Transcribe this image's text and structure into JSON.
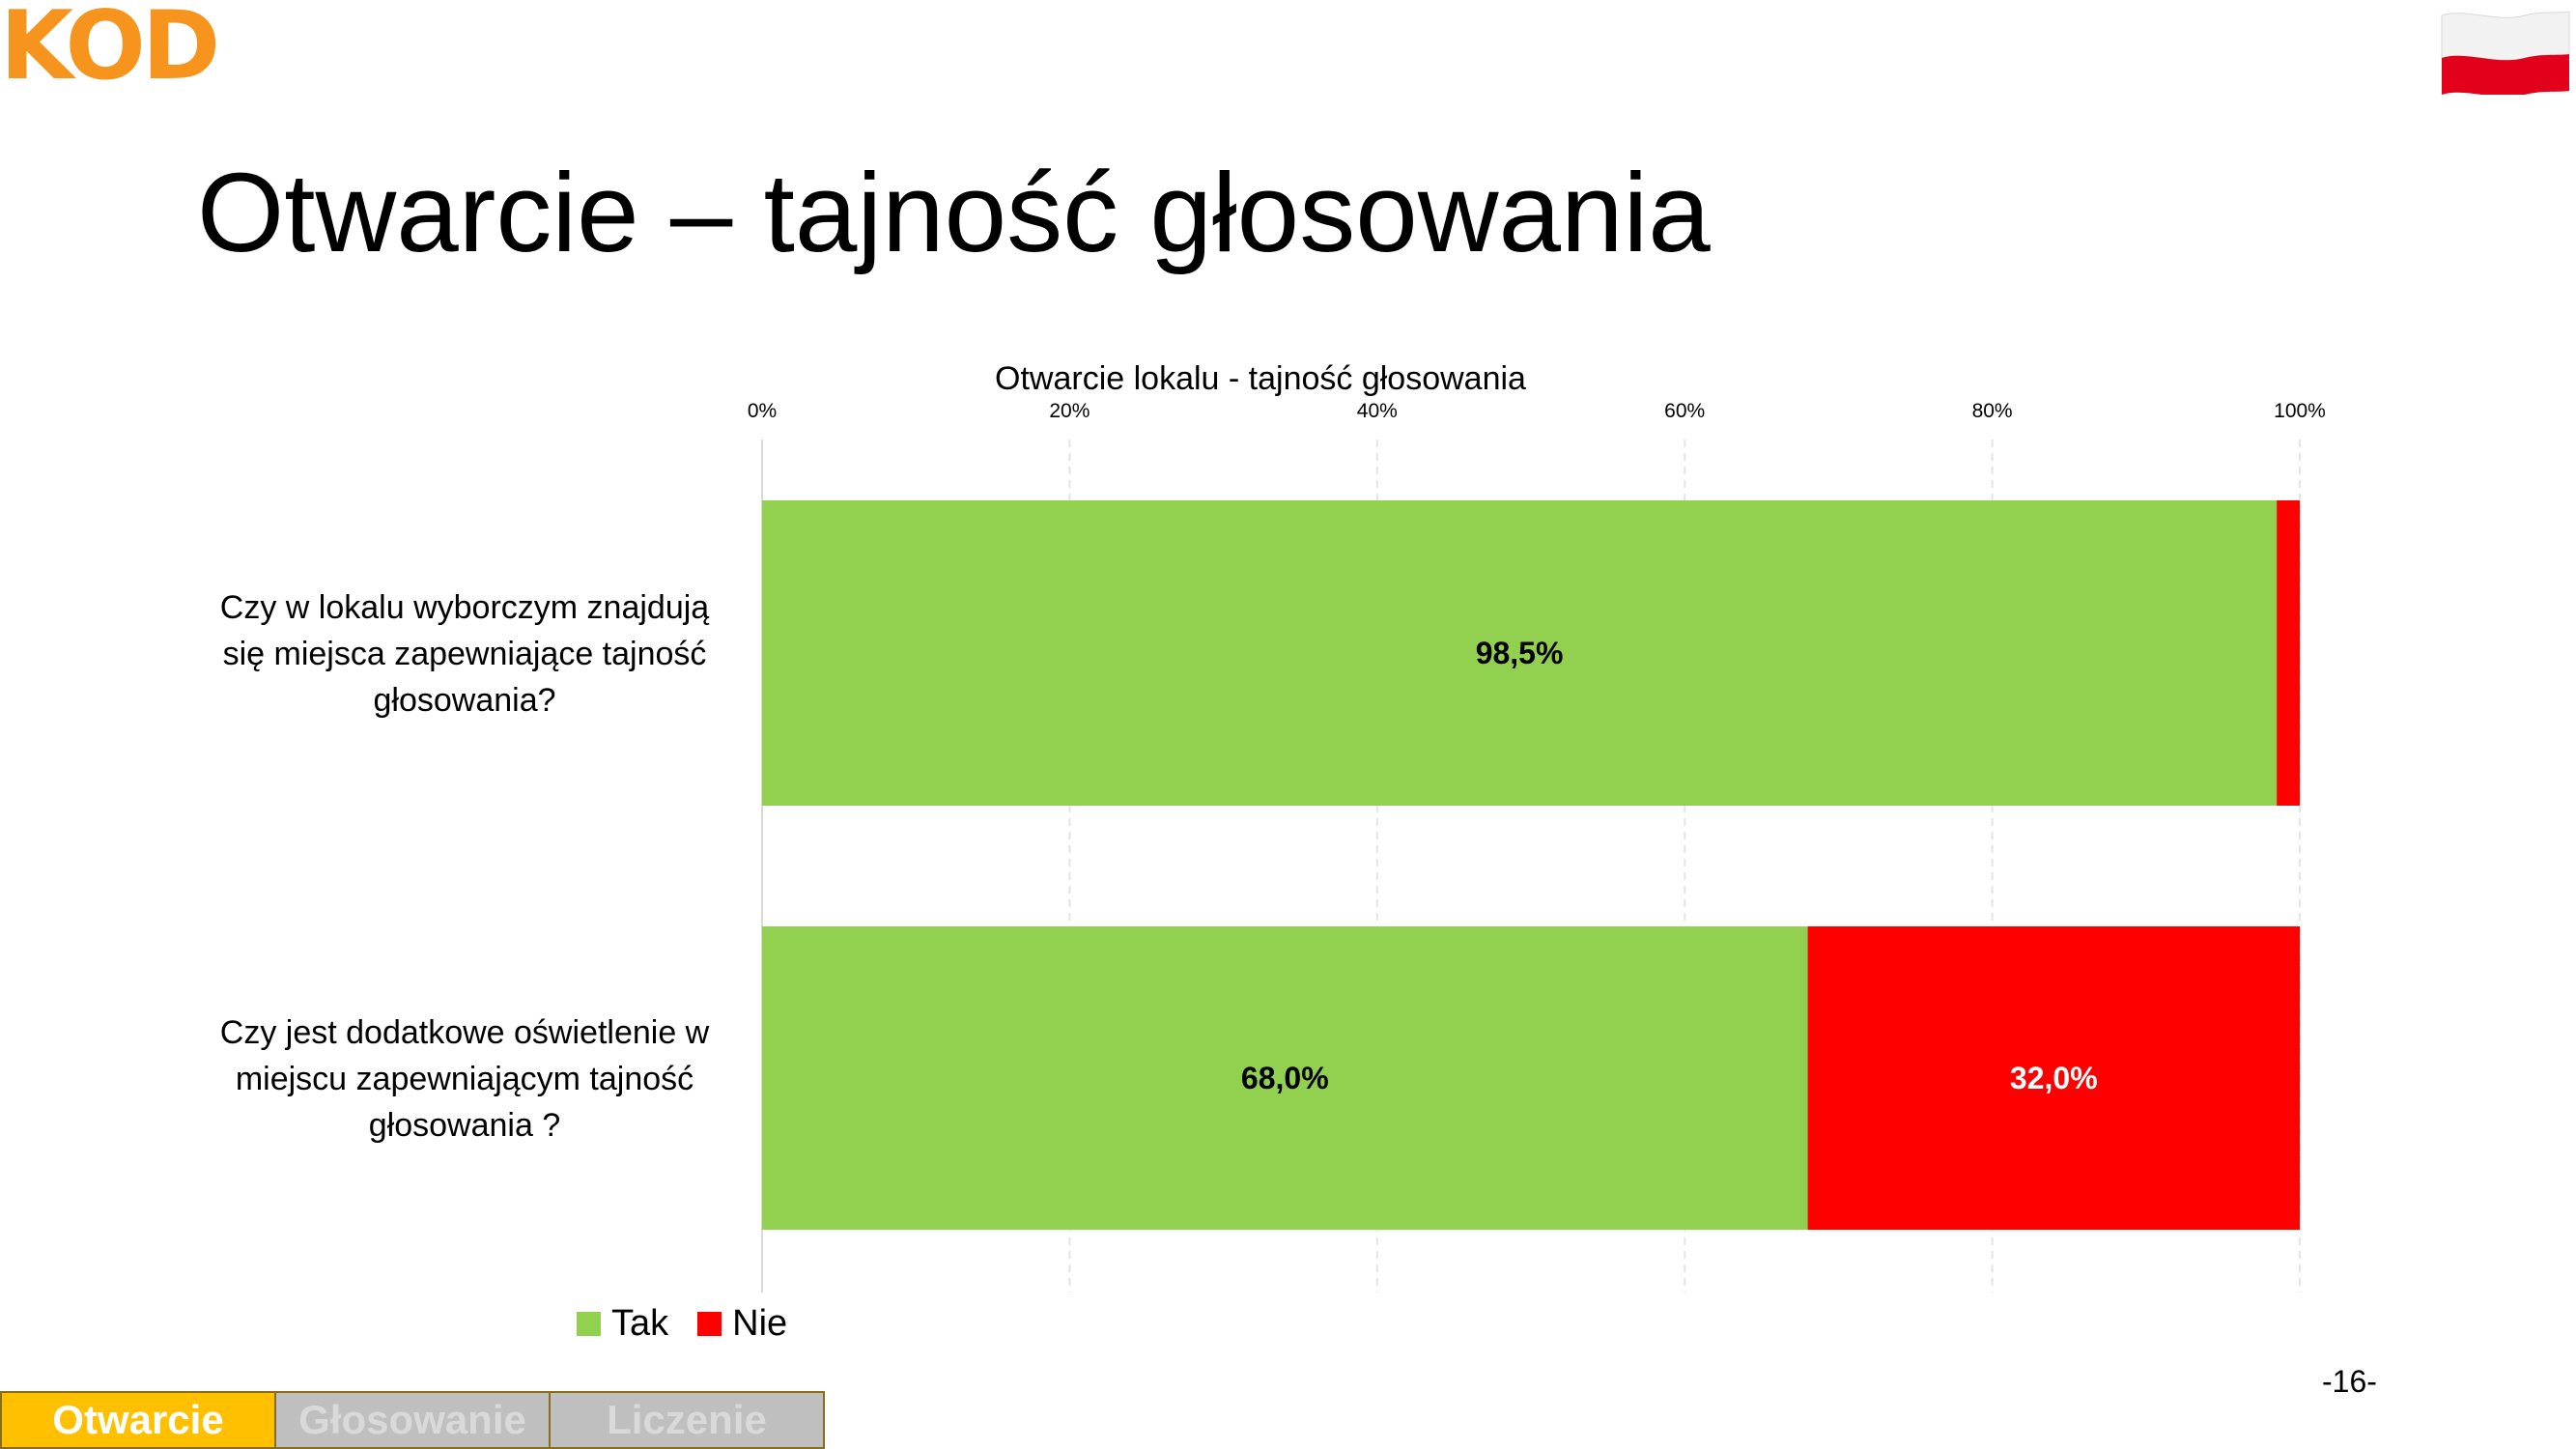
{
  "header": {
    "logo_text": "KOD",
    "flag_icon": "poland-flag-icon",
    "title": "Otwarcie – tajność głosowania"
  },
  "chart_data": {
    "type": "bar",
    "orientation": "horizontal",
    "stacked": "percent",
    "title": "Otwarcie lokalu - tajność głosowania",
    "xaxis_position": "top",
    "xlim": [
      0,
      100
    ],
    "xticks": [
      "0%",
      "20%",
      "40%",
      "60%",
      "80%",
      "100%"
    ],
    "grid": true,
    "legend_position": "bottom-left",
    "categories": [
      "Czy w lokalu wyborczym znajdują się miejsca zapewniające tajność głosowania?",
      "Czy jest dodatkowe oświetlenie w miejscu zapewniającym tajność głosowania ?"
    ],
    "category_lines": [
      [
        "Czy w lokalu wyborczym znajdują",
        "się miejsca zapewniające tajność",
        "głosowania?"
      ],
      [
        "Czy jest dodatkowe oświetlenie w",
        "miejscu zapewniającym tajność",
        "głosowania ?"
      ]
    ],
    "series": [
      {
        "name": "Tak",
        "color": "#92d050",
        "values": [
          98.5,
          68.0
        ],
        "labels": [
          "98,5%",
          "68,0%"
        ],
        "label_color": "#000000"
      },
      {
        "name": "Nie",
        "color": "#ff0000",
        "values": [
          1.5,
          32.0
        ],
        "labels": [
          "",
          "32,0%"
        ],
        "label_color": "#ffffff"
      }
    ]
  },
  "footer": {
    "page_number": "-16-",
    "nav_tabs": [
      {
        "label": "Otwarcie",
        "active": true
      },
      {
        "label": "Głosowanie",
        "active": false
      },
      {
        "label": "Liczenie",
        "active": false
      }
    ]
  }
}
